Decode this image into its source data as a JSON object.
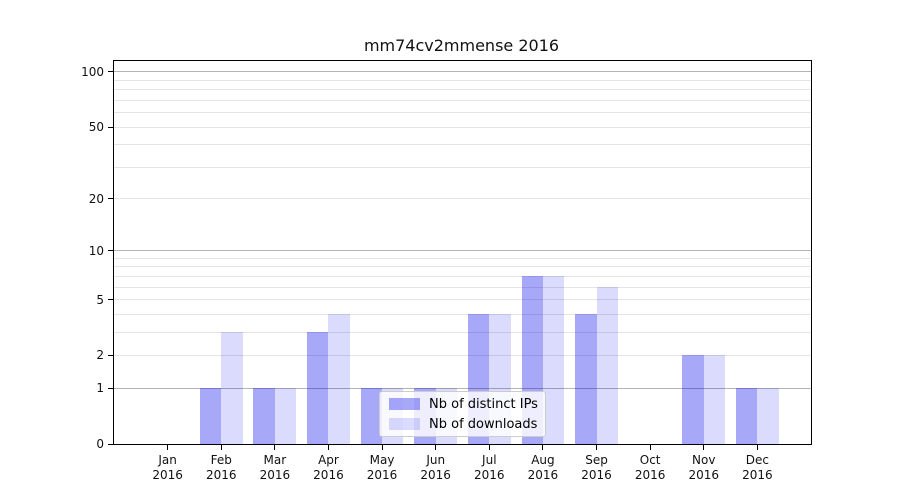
{
  "title": "mm74cv2mmense 2016",
  "colors": {
    "bar_ips": "rgba(0, 0, 238, 0.34)",
    "bar_downloads": "rgba(0, 0, 238, 0.14)",
    "grid_major": "#b4b4b4",
    "grid_minor": "#e4e4e4",
    "axis": "#000000",
    "legend_border": "#cccccc",
    "legend_background": "rgba(255,255,255,0.8)"
  },
  "chart_data": {
    "type": "bar",
    "title": "mm74cv2mmense 2016",
    "categories": [
      "Jan 2016",
      "Feb 2016",
      "Mar 2016",
      "Apr 2016",
      "May 2016",
      "Jun 2016",
      "Jul 2016",
      "Aug 2016",
      "Sep 2016",
      "Oct 2016",
      "Nov 2016",
      "Dec 2016"
    ],
    "series": [
      {
        "name": "Nb of distinct IPs",
        "values": [
          0,
          1,
          1,
          3,
          1,
          1,
          4,
          7,
          4,
          0,
          2,
          1
        ]
      },
      {
        "name": "Nb of downloads",
        "values": [
          0,
          3,
          1,
          4,
          1,
          1,
          4,
          7,
          6,
          0,
          2,
          1
        ]
      }
    ],
    "xlabel": "",
    "ylabel": "",
    "yscale": "log10(value+1)",
    "ylim": [
      0,
      115
    ],
    "yticks": [
      0,
      1,
      2,
      5,
      10,
      20,
      50,
      100
    ],
    "major_gridlines": [
      1,
      10,
      100
    ],
    "minor_gridlines": [
      2,
      3,
      4,
      5,
      6,
      7,
      8,
      9,
      20,
      30,
      40,
      50,
      60,
      70,
      80,
      90
    ],
    "grid": "horizontal only",
    "legend_position": "lower center"
  },
  "legend": {
    "items": [
      {
        "label": "Nb of distinct IPs"
      },
      {
        "label": "Nb of downloads"
      }
    ]
  }
}
